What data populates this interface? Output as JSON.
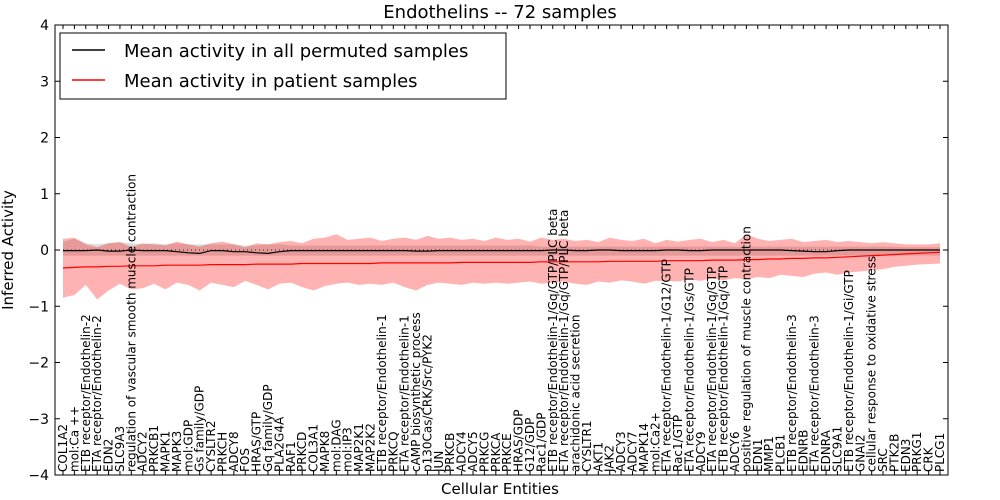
{
  "chart_data": {
    "type": "line",
    "title": "Endothelins -- 72 samples",
    "xlabel": "Cellular Entities",
    "ylabel": "Inferred Activity",
    "ylim": [
      -4,
      4
    ],
    "yticks": [
      "4",
      "3",
      "2",
      "1",
      "0",
      "−1",
      "−2",
      "−3",
      "−4"
    ],
    "legend": {
      "position": "top-left",
      "entries": [
        {
          "label": "Mean activity in all permuted samples",
          "color": "#000000"
        },
        {
          "label": "Mean activity in patient samples",
          "color": "#ff0000"
        }
      ]
    },
    "categories": [
      "COL1A2",
      "mol:Ca ++",
      "ETB receptor/Endothelin-2",
      "ETA receptor/Endothelin-2",
      "EDN2",
      "SLC9A3",
      "regulation of vascular smooth muscle contraction",
      "ADCY2",
      "PRKCB1",
      "MAPK1",
      "MAPK3",
      "mol:GDP",
      "Gs family/GDP",
      "CYSLTR2",
      "PRKCH",
      "ADCY8",
      "FOS",
      "HRAS/GTP",
      "Gq family/GDP",
      "PLA2G4A",
      "RAF1",
      "PRKCD",
      "COL3A1",
      "MAPK8",
      "mol:DAG",
      "mol:IP3",
      "MAP2K1",
      "MAP2K2",
      "ETB receptor/Endothelin-1",
      "PRKCQ",
      "ETA receptor/Endothelin-1",
      "cAMP biosynthetic process",
      "p130Cas/CRK/Src/PYK2",
      "JUN",
      "PRKCB",
      "ADCY4",
      "ADCY5",
      "PRKCG",
      "PRKCA",
      "PRKCE",
      "HRAS/GDP",
      "G12/GDP",
      "Rac1/GDP",
      "ETB receptor/Endothelin-1/Gq/GTP/PLC beta",
      "ETA receptor/Endothelin-1/Gq/GTP/PLC beta",
      "arachidonic acid secretion",
      "CYSLTR1",
      "AKT1",
      "JAK2",
      "ADCY3",
      "ADCY7",
      "MAPK14",
      "mol:Ca2+",
      "ETA receptor/Endothelin-1/G12/GTP",
      "Rac1/GTP",
      "ETA receptor/Endothelin-1/Gs/GTP",
      "ADCY9",
      "ETA receptor/Endothelin-1/Gq/GTP",
      "ETB receptor/Endothelin-1/Gq/GTP",
      "ADCY6",
      "positive regulation of muscle contraction",
      "EDN1",
      "MMP1",
      "PLCB1",
      "ETB receptor/Endothelin-3",
      "EDNRB",
      "ETA receptor/Endothelin-3",
      "EDNRA",
      "SLC9A1",
      "ETB receptor/Endothelin-1/Gi/GTP",
      "GNAI2",
      "cellular response to oxidative stress",
      "SRC",
      "PTK2B",
      "EDN3",
      "PRKG1",
      "CRK",
      "PLCG1"
    ],
    "series": [
      {
        "name": "Mean activity in all permuted samples",
        "color": "#000000",
        "values": [
          -0.01,
          -0.01,
          -0.01,
          0.0,
          -0.02,
          -0.02,
          0.0,
          -0.01,
          -0.01,
          -0.01,
          -0.03,
          -0.05,
          -0.06,
          -0.01,
          -0.01,
          -0.03,
          -0.03,
          -0.05,
          -0.06,
          -0.03,
          -0.01,
          -0.01,
          -0.01,
          -0.01,
          -0.01,
          -0.01,
          -0.01,
          -0.01,
          -0.01,
          -0.01,
          -0.01,
          -0.02,
          -0.02,
          -0.01,
          -0.01,
          -0.01,
          -0.01,
          -0.01,
          -0.01,
          -0.01,
          -0.01,
          -0.01,
          -0.01,
          0.0,
          0.0,
          -0.01,
          -0.01,
          0.0,
          0.0,
          -0.01,
          -0.01,
          -0.01,
          -0.01,
          0.0,
          0.0,
          -0.01,
          -0.01,
          0.0,
          0.0,
          0.0,
          0.0,
          0.0,
          0.0,
          0.0,
          -0.01,
          -0.02,
          -0.03,
          -0.03,
          -0.01,
          0.0,
          0.0,
          0.0,
          0.0,
          0.0,
          0.0,
          0.0,
          0.0,
          0.0
        ]
      },
      {
        "name": "Mean activity in patient samples",
        "color": "#ff0000",
        "values": [
          -0.32,
          -0.31,
          -0.3,
          -0.3,
          -0.29,
          -0.29,
          -0.28,
          -0.28,
          -0.28,
          -0.27,
          -0.27,
          -0.27,
          -0.27,
          -0.26,
          -0.26,
          -0.26,
          -0.26,
          -0.25,
          -0.25,
          -0.25,
          -0.25,
          -0.24,
          -0.24,
          -0.24,
          -0.24,
          -0.24,
          -0.24,
          -0.24,
          -0.23,
          -0.23,
          -0.23,
          -0.23,
          -0.23,
          -0.23,
          -0.23,
          -0.22,
          -0.22,
          -0.22,
          -0.22,
          -0.22,
          -0.22,
          -0.22,
          -0.21,
          -0.21,
          -0.21,
          -0.21,
          -0.21,
          -0.21,
          -0.2,
          -0.2,
          -0.2,
          -0.2,
          -0.2,
          -0.19,
          -0.19,
          -0.19,
          -0.19,
          -0.18,
          -0.18,
          -0.18,
          -0.17,
          -0.17,
          -0.16,
          -0.16,
          -0.15,
          -0.15,
          -0.14,
          -0.14,
          -0.13,
          -0.12,
          -0.11,
          -0.1,
          -0.09,
          -0.08,
          -0.07,
          -0.06,
          -0.05,
          -0.04
        ]
      }
    ],
    "bands": [
      {
        "name": "permuted samples spread",
        "color": "#999999",
        "lower": [
          -0.1,
          -0.1,
          -0.1,
          -0.1,
          -0.1,
          -0.1,
          -0.1,
          -0.1,
          -0.1,
          -0.1,
          -0.1,
          -0.1,
          -0.1,
          -0.1,
          -0.1,
          -0.1,
          -0.1,
          -0.1,
          -0.1,
          -0.1,
          -0.1,
          -0.1,
          -0.1,
          -0.1,
          -0.1,
          -0.1,
          -0.1,
          -0.1,
          -0.1,
          -0.1,
          -0.1,
          -0.1,
          -0.1,
          -0.1,
          -0.1,
          -0.1,
          -0.1,
          -0.1,
          -0.1,
          -0.1,
          -0.1,
          -0.1,
          -0.1,
          -0.1,
          -0.1,
          -0.1,
          -0.1,
          -0.1,
          -0.1,
          -0.1,
          -0.1,
          -0.1,
          -0.1,
          -0.1,
          -0.1,
          -0.1,
          -0.1,
          -0.1,
          -0.1,
          -0.1,
          -0.1,
          -0.1,
          -0.1,
          -0.1,
          -0.1,
          -0.1,
          -0.1,
          -0.1,
          -0.1,
          -0.1,
          -0.1,
          -0.1,
          -0.1,
          -0.1,
          -0.1,
          -0.1,
          -0.1,
          -0.1
        ],
        "upper": [
          0.15,
          0.2,
          0.12,
          0.1,
          0.12,
          0.14,
          0.12,
          0.1,
          0.12,
          0.1,
          0.12,
          0.1,
          0.1,
          0.1,
          0.1,
          0.1,
          0.08,
          0.08,
          0.1,
          0.1,
          0.08,
          0.08,
          0.08,
          0.08,
          0.08,
          0.08,
          0.08,
          0.08,
          0.08,
          0.08,
          0.08,
          0.08,
          0.08,
          0.08,
          0.08,
          0.08,
          0.08,
          0.08,
          0.08,
          0.08,
          0.08,
          0.08,
          0.06,
          0.06,
          0.06,
          0.06,
          0.06,
          0.06,
          0.06,
          0.06,
          0.06,
          0.06,
          0.06,
          0.06,
          0.06,
          0.06,
          0.06,
          0.06,
          0.06,
          0.06,
          0.06,
          0.06,
          0.06,
          0.06,
          0.06,
          0.06,
          0.06,
          0.06,
          0.06,
          0.06,
          0.06,
          0.06,
          0.06,
          0.06,
          0.05,
          0.05,
          0.05,
          0.05
        ]
      },
      {
        "name": "patient samples spread",
        "color": "#ff0000",
        "lower": [
          -0.85,
          -0.8,
          -0.62,
          -0.88,
          -0.72,
          -0.6,
          -0.7,
          -0.68,
          -0.6,
          -0.7,
          -0.58,
          -0.62,
          -0.72,
          -0.58,
          -0.62,
          -0.66,
          -0.55,
          -0.62,
          -0.7,
          -0.6,
          -0.58,
          -0.66,
          -0.72,
          -0.64,
          -0.6,
          -0.58,
          -0.62,
          -0.6,
          -0.62,
          -0.58,
          -0.66,
          -0.72,
          -0.62,
          -0.58,
          -0.6,
          -0.62,
          -0.58,
          -0.6,
          -0.58,
          -0.6,
          -0.58,
          -0.56,
          -0.6,
          -0.58,
          -0.56,
          -0.6,
          -0.62,
          -0.56,
          -0.58,
          -0.54,
          -0.56,
          -0.6,
          -0.55,
          -0.55,
          -0.56,
          -0.52,
          -0.55,
          -0.5,
          -0.54,
          -0.5,
          -0.52,
          -0.48,
          -0.5,
          -0.44,
          -0.46,
          -0.48,
          -0.42,
          -0.4,
          -0.44,
          -0.4,
          -0.38,
          -0.36,
          -0.34,
          -0.3,
          -0.28,
          -0.26,
          -0.25,
          -0.24
        ],
        "upper": [
          0.2,
          0.22,
          0.1,
          0.05,
          0.12,
          0.14,
          0.05,
          0.12,
          0.1,
          0.08,
          0.15,
          0.1,
          0.06,
          0.12,
          0.15,
          0.1,
          0.05,
          0.12,
          0.1,
          0.14,
          0.16,
          0.12,
          0.2,
          0.22,
          0.28,
          0.18,
          0.2,
          0.22,
          0.16,
          0.2,
          0.22,
          0.18,
          0.25,
          0.2,
          0.22,
          0.18,
          0.2,
          0.16,
          0.22,
          0.18,
          0.2,
          0.15,
          0.22,
          0.18,
          0.2,
          0.16,
          0.18,
          0.14,
          0.22,
          0.18,
          0.16,
          0.2,
          0.12,
          0.18,
          0.15,
          0.18,
          0.2,
          0.14,
          0.18,
          0.12,
          0.28,
          0.2,
          0.16,
          0.18,
          0.2,
          0.14,
          0.16,
          0.18,
          0.14,
          0.16,
          0.14,
          0.12,
          0.14,
          0.12,
          0.1,
          0.1,
          0.1,
          0.12
        ]
      }
    ]
  }
}
